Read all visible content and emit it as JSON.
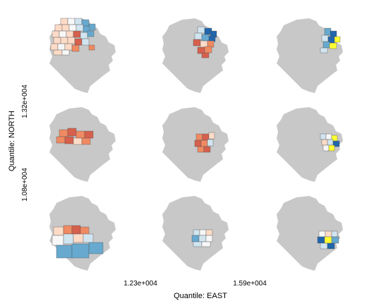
{
  "chart_data": {
    "type": "conditioning-map-matrix",
    "rows": 3,
    "cols": 3,
    "xlabel": "Quantile: EAST",
    "ylabel": "Quantile: NORTH",
    "x_ticks": [
      "1.23e+004",
      "1.59e+004"
    ],
    "y_ticks": [
      "1.08e+004",
      "1.32e+004"
    ],
    "colors": {
      "background": "#c8c8c8",
      "deep_red": "#d6604d",
      "mid_red": "#ef8a62",
      "light_red": "#fddbc7",
      "pale": "#f7f7f7",
      "light_blue": "#d1e5f0",
      "mid_blue": "#67a9cf",
      "deep_blue": "#2166ac",
      "highlight": "#ffff33",
      "border": "#555555"
    }
  }
}
